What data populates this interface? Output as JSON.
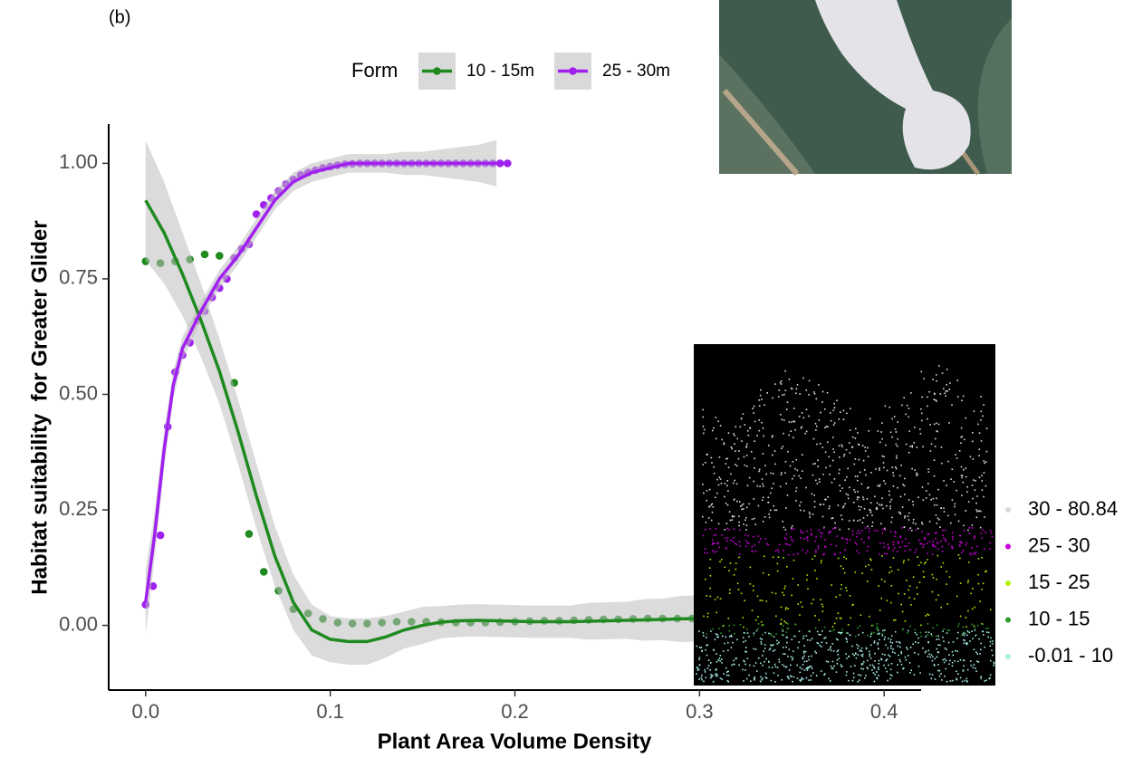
{
  "panel_label": "(b)",
  "chart_data": {
    "type": "scatter",
    "x_label": "Plant Area Volume Density",
    "y_label": "Habitat suitability  for Greater Glider",
    "legend_title": "Form",
    "xlim": [
      -0.02,
      0.42
    ],
    "ylim": [
      -0.14,
      1.085
    ],
    "xticks": [
      {
        "value": 0,
        "label": "0.0"
      },
      {
        "value": 0.1,
        "label": "0.1"
      },
      {
        "value": 0.2,
        "label": "0.2"
      },
      {
        "value": 0.3,
        "label": "0.3"
      },
      {
        "value": 0.4,
        "label": "0.4"
      }
    ],
    "yticks": [
      {
        "value": 0,
        "label": "0.00"
      },
      {
        "value": 0.25,
        "label": "0.25"
      },
      {
        "value": 0.5,
        "label": "0.50"
      },
      {
        "value": 0.75,
        "label": "0.75"
      },
      {
        "value": 1,
        "label": "1.00"
      }
    ],
    "series": [
      {
        "name": "10 - 15m",
        "color": "#1f8a1f",
        "x": [
          0,
          0.008,
          0.016,
          0.024,
          0.032,
          0.04,
          0.048,
          0.056,
          0.064,
          0.072,
          0.08,
          0.088,
          0.096,
          0.104,
          0.112,
          0.12,
          0.128,
          0.136,
          0.144,
          0.152,
          0.16,
          0.168,
          0.176,
          0.184,
          0.192,
          0.2,
          0.208,
          0.216,
          0.224,
          0.232,
          0.24,
          0.248,
          0.256,
          0.264,
          0.272,
          0.28,
          0.288,
          0.296
        ],
        "values": [
          0.788,
          0.784,
          0.788,
          0.792,
          0.803,
          0.8,
          0.525,
          0.198,
          0.116,
          0.075,
          0.035,
          0.026,
          0.014,
          0.006,
          0.004,
          0.004,
          0.006,
          0.008,
          0.008,
          0.008,
          0.007,
          0.006,
          0.006,
          0.006,
          0.007,
          0.008,
          0.009,
          0.01,
          0.01,
          0.011,
          0.012,
          0.013,
          0.013,
          0.014,
          0.015,
          0.015,
          0.015,
          0.015
        ],
        "smooth": {
          "x": [
            0,
            0.01,
            0.02,
            0.03,
            0.04,
            0.05,
            0.06,
            0.07,
            0.08,
            0.09,
            0.1,
            0.11,
            0.12,
            0.13,
            0.14,
            0.15,
            0.16,
            0.17,
            0.18,
            0.19,
            0.2,
            0.21,
            0.22,
            0.23,
            0.24,
            0.25,
            0.26,
            0.27,
            0.28,
            0.29,
            0.3
          ],
          "values": [
            0.92,
            0.85,
            0.76,
            0.66,
            0.55,
            0.42,
            0.28,
            0.15,
            0.05,
            -0.01,
            -0.03,
            -0.035,
            -0.035,
            -0.025,
            -0.01,
            0,
            0.007,
            0.01,
            0.011,
            0.01,
            0.009,
            0.008,
            0.008,
            0.008,
            0.009,
            0.01,
            0.011,
            0.012,
            0.013,
            0.014,
            0.015
          ],
          "lower": [
            0.79,
            0.74,
            0.67,
            0.58,
            0.48,
            0.35,
            0.21,
            0.085,
            -0.01,
            -0.065,
            -0.08,
            -0.085,
            -0.085,
            -0.07,
            -0.05,
            -0.04,
            -0.028,
            -0.025,
            -0.024,
            -0.025,
            -0.026,
            -0.027,
            -0.027,
            -0.027,
            -0.031,
            -0.03,
            -0.029,
            -0.033,
            -0.032,
            -0.036,
            -0.035
          ],
          "upper": [
            1.05,
            0.96,
            0.85,
            0.74,
            0.62,
            0.49,
            0.35,
            0.215,
            0.11,
            0.045,
            0.02,
            0.015,
            0.015,
            0.02,
            0.03,
            0.04,
            0.042,
            0.045,
            0.046,
            0.045,
            0.044,
            0.043,
            0.043,
            0.043,
            0.049,
            0.05,
            0.051,
            0.057,
            0.058,
            0.064,
            0.065
          ]
        }
      },
      {
        "name": "25 - 30m",
        "color": "#a020f0",
        "x": [
          0,
          0.004,
          0.008,
          0.012,
          0.016,
          0.02,
          0.024,
          0.028,
          0.032,
          0.036,
          0.04,
          0.044,
          0.048,
          0.052,
          0.056,
          0.06,
          0.064,
          0.068,
          0.072,
          0.076,
          0.08,
          0.084,
          0.088,
          0.092,
          0.096,
          0.1,
          0.104,
          0.108,
          0.112,
          0.116,
          0.12,
          0.124,
          0.128,
          0.132,
          0.136,
          0.14,
          0.144,
          0.148,
          0.152,
          0.156,
          0.16,
          0.164,
          0.168,
          0.172,
          0.176,
          0.18,
          0.184,
          0.188,
          0.192,
          0.196
        ],
        "values": [
          0.045,
          0.085,
          0.195,
          0.43,
          0.548,
          0.585,
          0.612,
          0.66,
          0.68,
          0.71,
          0.73,
          0.75,
          0.795,
          0.815,
          0.825,
          0.89,
          0.91,
          0.925,
          0.94,
          0.955,
          0.965,
          0.975,
          0.98,
          0.985,
          0.99,
          0.993,
          0.996,
          0.998,
          0.999,
          1,
          1,
          1,
          1,
          1,
          1,
          1,
          1,
          1,
          1,
          1,
          1,
          1,
          1,
          1,
          1,
          1,
          1,
          1,
          1,
          1
        ],
        "smooth": {
          "x": [
            0,
            0.005,
            0.01,
            0.015,
            0.02,
            0.03,
            0.04,
            0.05,
            0.06,
            0.07,
            0.08,
            0.09,
            0.1,
            0.11,
            0.12,
            0.13,
            0.14,
            0.15,
            0.16,
            0.17,
            0.18,
            0.19
          ],
          "values": [
            0.05,
            0.2,
            0.38,
            0.52,
            0.6,
            0.68,
            0.75,
            0.8,
            0.86,
            0.92,
            0.96,
            0.98,
            0.99,
            1,
            1,
            1,
            1,
            1,
            1,
            1,
            1,
            1
          ],
          "lower": [
            -0.02,
            0.15,
            0.34,
            0.49,
            0.575,
            0.66,
            0.73,
            0.78,
            0.84,
            0.9,
            0.94,
            0.96,
            0.97,
            0.98,
            0.98,
            0.98,
            0.975,
            0.975,
            0.97,
            0.965,
            0.96,
            0.95
          ],
          "upper": [
            0.12,
            0.25,
            0.42,
            0.55,
            0.625,
            0.7,
            0.77,
            0.82,
            0.88,
            0.94,
            0.98,
            1,
            1.01,
            1.02,
            1.02,
            1.02,
            1.025,
            1.025,
            1.03,
            1.035,
            1.04,
            1.05
          ]
        }
      }
    ]
  },
  "inset_legend": [
    {
      "label": "30 - 80.84",
      "color": "#d9d9d9"
    },
    {
      "label": "25 - 30",
      "color": "#cc00dd"
    },
    {
      "label": "15 - 25",
      "color": "#b4f000"
    },
    {
      "label": "10 - 15",
      "color": "#2a9a2a"
    },
    {
      "label": "-0.01 - 10",
      "color": "#a8ece6"
    }
  ]
}
